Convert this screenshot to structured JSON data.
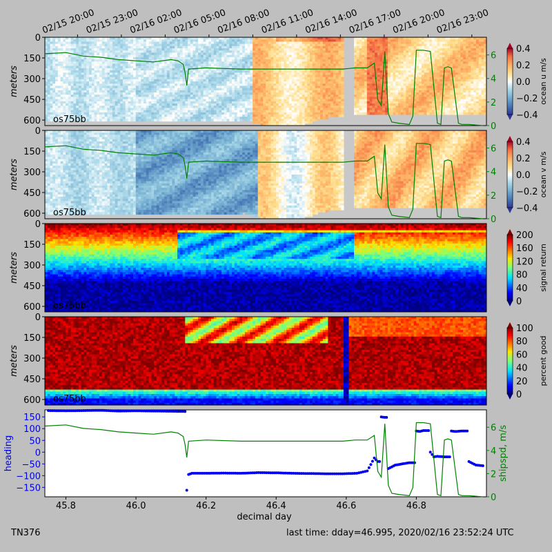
{
  "chart_data": [
    {
      "type": "heatmap",
      "panel": "u",
      "instrument_label": "os75bb",
      "ylabel": "meters",
      "yticks": [
        0,
        150,
        300,
        450,
        600
      ],
      "ylim": [
        640,
        0
      ],
      "colorbar": {
        "label": "ocean u m/s",
        "ticks": [
          "0.4",
          "0.2",
          "0.0",
          "−0.2",
          "−0.4"
        ],
        "range": [
          -0.4,
          0.4
        ],
        "colormap": "rdylbu"
      },
      "right_axis": {
        "ticks": [
          "6",
          "4",
          "2",
          "0"
        ],
        "range": [
          0,
          7.5
        ],
        "color": "#008000"
      },
      "overlay": "ship speed (m/s)"
    },
    {
      "type": "heatmap",
      "panel": "v",
      "instrument_label": "os75bb",
      "ylabel": "meters",
      "yticks": [
        0,
        150,
        300,
        450,
        600
      ],
      "ylim": [
        640,
        0
      ],
      "colorbar": {
        "label": "ocean v m/s",
        "ticks": [
          "0.4",
          "0.2",
          "0.0",
          "−0.2",
          "−0.4"
        ],
        "range": [
          -0.4,
          0.4
        ],
        "colormap": "rdylbu"
      },
      "right_axis": {
        "ticks": [
          "6",
          "4",
          "2",
          "0"
        ],
        "range": [
          0,
          7.5
        ],
        "color": "#008000"
      },
      "overlay": "ship speed (m/s)"
    },
    {
      "type": "heatmap",
      "panel": "amp",
      "instrument_label": "os75bb",
      "ylabel": "meters",
      "yticks": [
        0,
        150,
        300,
        450,
        600
      ],
      "ylim": [
        640,
        0
      ],
      "colorbar": {
        "label": "signal return",
        "ticks": [
          "200",
          "160",
          "120",
          "80",
          "40",
          "0"
        ],
        "range": [
          0,
          200
        ],
        "colormap": "jet"
      }
    },
    {
      "type": "heatmap",
      "panel": "pg",
      "instrument_label": "os75bb",
      "ylabel": "meters",
      "yticks": [
        0,
        150,
        300,
        450,
        600
      ],
      "ylim": [
        640,
        0
      ],
      "colorbar": {
        "label": "percent good",
        "ticks": [
          "100",
          "80",
          "60",
          "40",
          "20",
          "0"
        ],
        "range": [
          0,
          100
        ],
        "colormap": "jet"
      }
    },
    {
      "type": "scatter",
      "panel": "heading",
      "ylabel_left": "heading",
      "ylabel_right": "shipspd, m/s",
      "yticks_left": [
        "150",
        "100",
        "50",
        "0",
        "−50",
        "−100",
        "−150"
      ],
      "yticks_right": [
        "6",
        "4",
        "2",
        "0"
      ],
      "ylim_left": [
        -190,
        180
      ],
      "ylim_right": [
        0,
        7.5
      ],
      "xlabel": "decimal day",
      "xticks": [
        "45.8",
        "46.0",
        "46.2",
        "46.4",
        "46.6",
        "46.8"
      ],
      "xlim": [
        45.74,
        47.0
      ],
      "series": [
        {
          "name": "heading",
          "color": "#0000ee",
          "x": [
            45.75,
            45.8,
            45.85,
            45.9,
            45.95,
            46.0,
            46.05,
            46.1,
            46.14,
            46.145,
            46.15,
            46.16,
            46.2,
            46.25,
            46.3,
            46.35,
            46.4,
            46.45,
            46.5,
            46.55,
            46.59,
            46.63,
            46.66,
            46.68,
            46.69,
            46.7,
            46.71,
            46.72,
            46.74,
            46.76,
            46.78,
            46.8,
            46.81,
            46.82,
            46.84,
            46.85,
            46.86,
            46.88,
            46.9,
            46.91,
            46.93,
            46.95,
            46.97,
            46.99
          ],
          "y": [
            177,
            176,
            177,
            178,
            175,
            176,
            175,
            174,
            173,
            -162,
            -95,
            -90,
            -90,
            -89,
            -90,
            -87,
            -88,
            -90,
            -91,
            -92,
            -92,
            -90,
            -80,
            -25,
            -40,
            150,
            148,
            -70,
            -55,
            -50,
            -45,
            90,
            88,
            92,
            0,
            -20,
            -18,
            -20,
            90,
            88,
            90,
            -40,
            -55,
            -58
          ]
        },
        {
          "name": "shipspd",
          "color": "#008000",
          "x": [
            45.74,
            45.8,
            45.85,
            45.9,
            45.95,
            46.0,
            46.05,
            46.1,
            46.12,
            46.135,
            46.14,
            46.145,
            46.15,
            46.2,
            46.3,
            46.4,
            46.5,
            46.59,
            46.625,
            46.66,
            46.68,
            46.69,
            46.7,
            46.71,
            46.72,
            46.73,
            46.75,
            46.78,
            46.79,
            46.8,
            46.82,
            46.84,
            46.86,
            46.87,
            46.88,
            46.89,
            46.9,
            46.92,
            46.93,
            46.95,
            46.99
          ],
          "y": [
            6.1,
            6.2,
            5.9,
            5.8,
            5.6,
            5.5,
            5.4,
            5.6,
            5.5,
            5.2,
            4.5,
            3.4,
            4.8,
            4.9,
            4.8,
            4.8,
            4.8,
            4.8,
            4.9,
            4.9,
            5.3,
            2.2,
            1.7,
            6.3,
            1.0,
            0.3,
            0.2,
            0.1,
            0.8,
            6.4,
            6.4,
            6.3,
            0.2,
            0.1,
            4.9,
            5.0,
            4.9,
            0.2,
            0.1,
            0.1,
            0.0
          ]
        }
      ]
    }
  ],
  "top_axis": {
    "ticks": [
      "02/15 20:00",
      "02/15 23:00",
      "02/16 02:00",
      "02/16 05:00",
      "02/16 08:00",
      "02/16 11:00",
      "02/16 14:00",
      "02/16 17:00",
      "02/16 20:00",
      "02/16 23:00"
    ],
    "days": [
      45.8333,
      45.9583,
      46.0833,
      46.2083,
      46.3333,
      46.4583,
      46.5833,
      46.7083,
      46.8333,
      46.9583
    ]
  },
  "footer": {
    "cruise": "TN376",
    "last_time": "last time: dday=46.995,  2020/02/16 23:52:24 UTC"
  },
  "colors": {
    "background": "#bfbfbf",
    "missing_data": "#c8c8c8",
    "heading_dots": "#0000ee",
    "ship_speed": "#008000"
  }
}
